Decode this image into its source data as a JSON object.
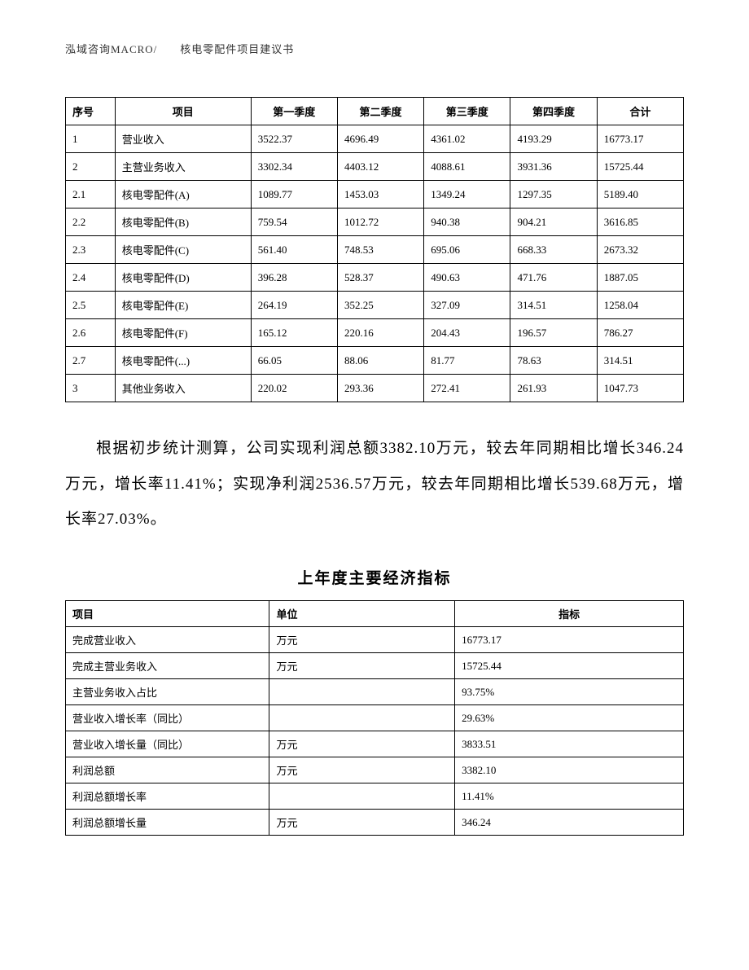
{
  "header": "泓域咨询MACRO/　　核电零配件项目建议书",
  "table1": {
    "columns": [
      "序号",
      "项目",
      "第一季度",
      "第二季度",
      "第三季度",
      "第四季度",
      "合计"
    ],
    "rows": [
      [
        "1",
        "营业收入",
        "3522.37",
        "4696.49",
        "4361.02",
        "4193.29",
        "16773.17"
      ],
      [
        "2",
        "主营业务收入",
        "3302.34",
        "4403.12",
        "4088.61",
        "3931.36",
        "15725.44"
      ],
      [
        "2.1",
        "核电零配件(A)",
        "1089.77",
        "1453.03",
        "1349.24",
        "1297.35",
        "5189.40"
      ],
      [
        "2.2",
        "核电零配件(B)",
        "759.54",
        "1012.72",
        "940.38",
        "904.21",
        "3616.85"
      ],
      [
        "2.3",
        "核电零配件(C)",
        "561.40",
        "748.53",
        "695.06",
        "668.33",
        "2673.32"
      ],
      [
        "2.4",
        "核电零配件(D)",
        "396.28",
        "528.37",
        "490.63",
        "471.76",
        "1887.05"
      ],
      [
        "2.5",
        "核电零配件(E)",
        "264.19",
        "352.25",
        "327.09",
        "314.51",
        "1258.04"
      ],
      [
        "2.6",
        "核电零配件(F)",
        "165.12",
        "220.16",
        "204.43",
        "196.57",
        "786.27"
      ],
      [
        "2.7",
        "核电零配件(...)",
        "66.05",
        "88.06",
        "81.77",
        "78.63",
        "314.51"
      ],
      [
        "3",
        "其他业务收入",
        "220.02",
        "293.36",
        "272.41",
        "261.93",
        "1047.73"
      ]
    ]
  },
  "paragraph": "根据初步统计测算，公司实现利润总额3382.10万元，较去年同期相比增长346.24万元，增长率11.41%；实现净利润2536.57万元，较去年同期相比增长539.68万元，增长率27.03%。",
  "section_title": "上年度主要经济指标",
  "table2": {
    "columns": [
      "项目",
      "单位",
      "指标"
    ],
    "rows": [
      [
        "完成营业收入",
        "万元",
        "16773.17"
      ],
      [
        "完成主营业务收入",
        "万元",
        "15725.44"
      ],
      [
        "主营业务收入占比",
        "",
        "93.75%"
      ],
      [
        "营业收入增长率（同比）",
        "",
        "29.63%"
      ],
      [
        "营业收入增长量（同比）",
        "万元",
        "3833.51"
      ],
      [
        "利润总额",
        "万元",
        "3382.10"
      ],
      [
        "利润总额增长率",
        "",
        "11.41%"
      ],
      [
        "利润总额增长量",
        "万元",
        "346.24"
      ]
    ]
  }
}
